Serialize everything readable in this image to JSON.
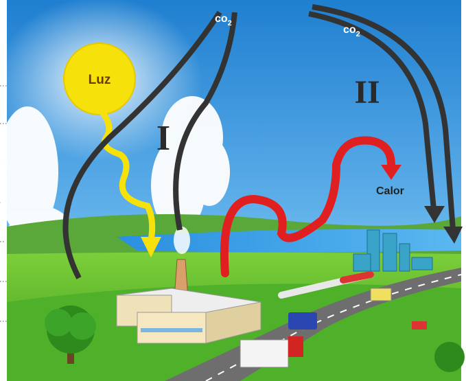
{
  "illustration": {
    "sun_label": "Luz",
    "co2_left": {
      "text": "co",
      "subscript": "2"
    },
    "co2_right": {
      "text": "co",
      "subscript": "2"
    },
    "process_one": "I",
    "process_two": "II",
    "heat_label": "Calor"
  }
}
